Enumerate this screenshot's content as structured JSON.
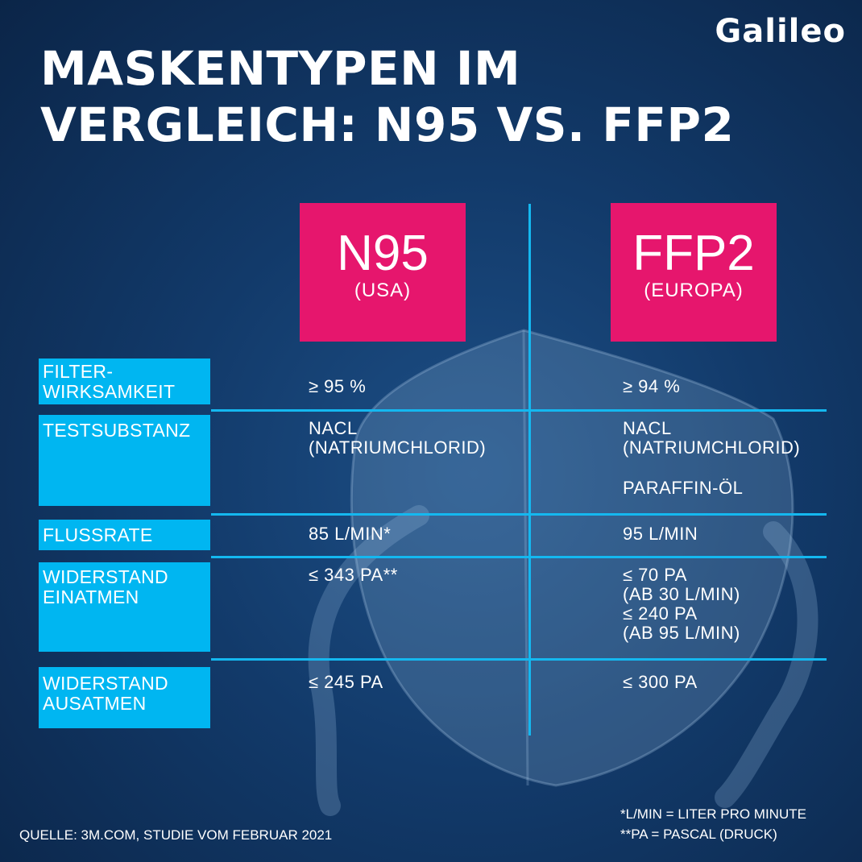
{
  "brand": {
    "logo_text": "Galileo"
  },
  "title": {
    "line1": "MASKENTYPEN IM",
    "line2": "VERGLEICH: N95 VS. FFP2"
  },
  "columns": [
    {
      "name": "N95",
      "region": "(USA)"
    },
    {
      "name": "FFP2",
      "region": "(EUROPA)"
    }
  ],
  "rows": [
    {
      "label_line1": "FILTER-",
      "label_line2": "WIRKSAMKEIT",
      "n95": "≥ 95 %",
      "ffp2": "≥ 94 %"
    },
    {
      "label_line1": "TESTSUBSTANZ",
      "label_line2": "",
      "n95": "NACL\n(NATRIUMCHLORID)",
      "ffp2": "NACL\n(NATRIUMCHLORID)",
      "ffp2_extra": "PARAFFIN-ÖL"
    },
    {
      "label_line1": "FLUSSRATE",
      "label_line2": "",
      "n95": "85 L/MIN*",
      "ffp2": "95 L/MIN"
    },
    {
      "label_line1": "WIDERSTAND",
      "label_line2": "EINATMEN",
      "n95": "≤ 343 PA**",
      "ffp2": "≤ 70 PA\n(AB 30 L/MIN)\n≤ 240 PA\n(AB 95 L/MIN)"
    },
    {
      "label_line1": "WIDERSTAND",
      "label_line2": "AUSATMEN",
      "n95": "≤ 245 PA",
      "ffp2": "≤ 300 PA"
    }
  ],
  "source": "QUELLE: 3M.COM, STUDIE VOM FEBRUAR 2021",
  "footnotes": [
    "*L/MIN = LITER PRO MINUTE",
    "**PA = PASCAL (DRUCK)"
  ],
  "colors": {
    "pink": "#e6166d",
    "cyan": "#00b6f1",
    "line": "#14b8f0",
    "background": "#123a6a"
  }
}
